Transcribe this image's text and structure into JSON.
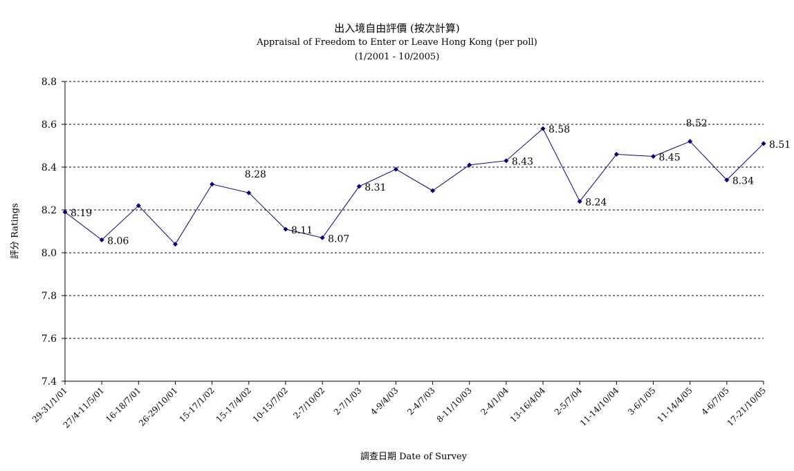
{
  "chart_data": {
    "type": "line",
    "title": "出入境自由評價 (按次計算)",
    "subtitle": "Appraisal of Freedom to Enter or Leave Hong Kong (per poll)",
    "subtitle2": "(1/2001 - 10/2005)",
    "xlabel": "調查日期 Date of Survey",
    "ylabel": "評分 Ratings",
    "ylim": [
      7.4,
      8.8
    ],
    "yticks": [
      "7.4",
      "7.6",
      "7.8",
      "8.0",
      "8.2",
      "8.4",
      "8.6",
      "8.8"
    ],
    "grid": true,
    "legend": "none",
    "line_color": "#000080",
    "categories": [
      "29-31/1/01",
      "27/4-11/5/01",
      "16-18/7/01",
      "26-29/10/01",
      "15-17/1/02",
      "15-17/4/02",
      "10-15/7/02",
      "2-7/10/02",
      "2-7/1/03",
      "4-9/4/03",
      "2-4/7/03",
      "8-11/10/03",
      "2-4/1/04",
      "13-16/4/04",
      "2-5/7/04",
      "11-14/10/04",
      "3-6/1/05",
      "11-14/4/05",
      "4-6/7/05",
      "17-21/10/05"
    ],
    "values": [
      8.19,
      8.06,
      8.22,
      8.04,
      8.32,
      8.28,
      8.11,
      8.07,
      8.31,
      8.39,
      8.29,
      8.41,
      8.43,
      8.58,
      8.24,
      8.46,
      8.45,
      8.52,
      8.34,
      8.51
    ],
    "data_labels": [
      "8.19",
      "8.06",
      "",
      "",
      "",
      "8.28",
      "8.11",
      "8.07",
      "8.31",
      "",
      "",
      "",
      "8.43",
      "8.58",
      "8.24",
      "",
      "8.45",
      "8.52",
      "8.34",
      "8.51"
    ]
  }
}
